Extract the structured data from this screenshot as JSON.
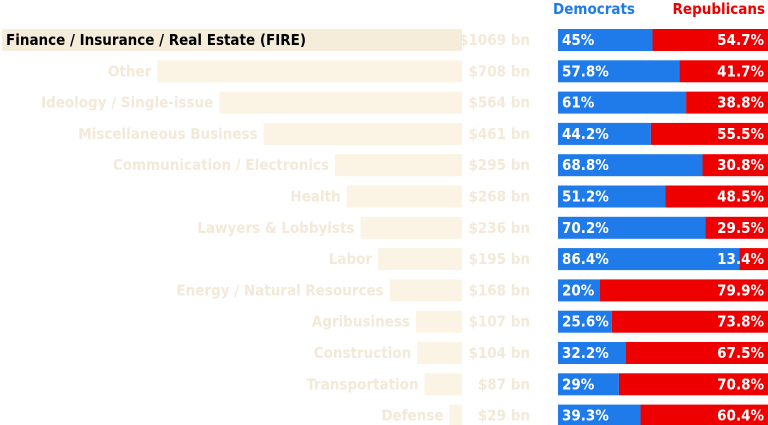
{
  "chart_data": {
    "type": "bar",
    "legend": {
      "dem": "Democrats",
      "rep": "Republicans",
      "position": "top"
    },
    "colors": {
      "dem": "#1f7bea",
      "rep": "#ee0000",
      "faded_bar": "#fbf3e4",
      "faded_text": "#f3e9d8",
      "highlight_bar": "#f5ecd9"
    },
    "highlight_index": 0,
    "categories": [
      "Finance / Insurance / Real Estate (FIRE)",
      "Other",
      "Ideology / Single-issue",
      "Miscellaneous Business",
      "Communication / Electronics",
      "Health",
      "Lawyers & Lobbyists",
      "Labor",
      "Energy / Natural Resources",
      "Agribusiness",
      "Construction",
      "Transportation",
      "Defense"
    ],
    "totals": [
      1069,
      708,
      564,
      461,
      295,
      268,
      236,
      195,
      168,
      107,
      104,
      87,
      29
    ],
    "total_labels": [
      "$1069 bn",
      "$708 bn",
      "$564 bn",
      "$461 bn",
      "$295 bn",
      "$268 bn",
      "$236 bn",
      "$195 bn",
      "$168 bn",
      "$107 bn",
      "$104 bn",
      "$87 bn",
      "$29 bn"
    ],
    "series": [
      {
        "name": "Democrats",
        "values": [
          45,
          57.8,
          61,
          44.2,
          68.8,
          51.2,
          70.2,
          86.4,
          20,
          25.6,
          32.2,
          29,
          39.3
        ],
        "labels": [
          "45%",
          "57.8%",
          "61%",
          "44.2%",
          "68.8%",
          "51.2%",
          "70.2%",
          "86.4%",
          "20%",
          "25.6%",
          "32.2%",
          "29%",
          "39.3%"
        ]
      },
      {
        "name": "Republicans",
        "values": [
          54.7,
          41.7,
          38.8,
          55.5,
          30.8,
          48.5,
          29.5,
          13.4,
          79.9,
          73.8,
          67.5,
          70.8,
          60.4
        ],
        "labels": [
          "54.7%",
          "41.7%",
          "38.8%",
          "55.5%",
          "30.8%",
          "48.5%",
          "29.5%",
          "13.4%",
          "79.9%",
          "73.8%",
          "67.5%",
          "70.8%",
          "60.4%"
        ]
      }
    ]
  }
}
